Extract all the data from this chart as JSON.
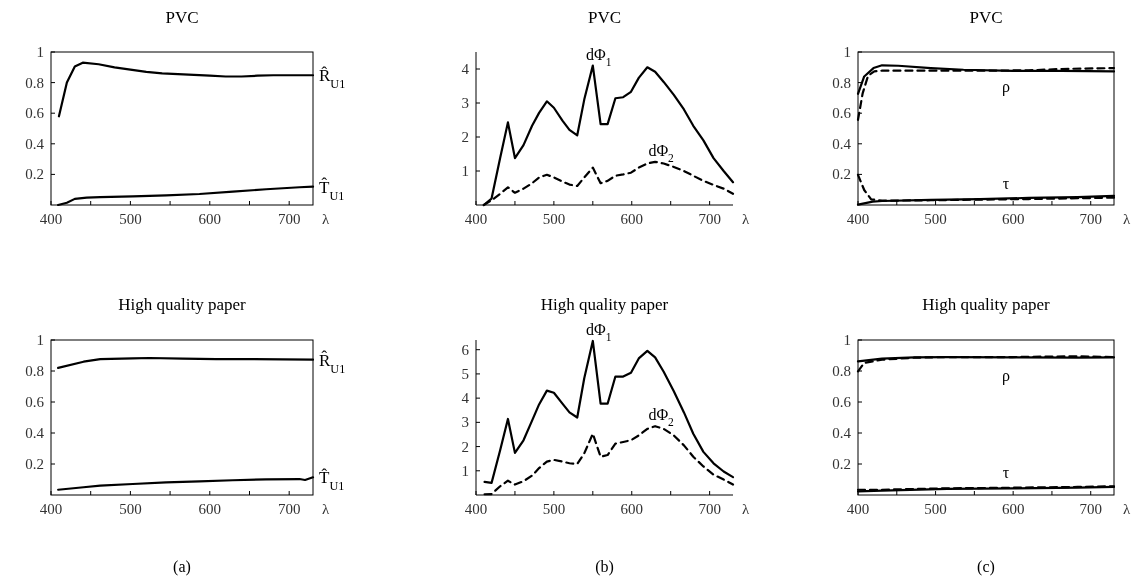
{
  "chart_data": [
    {
      "type": "line",
      "title": "PVC",
      "xlabel": "λ",
      "xlim": [
        400,
        730
      ],
      "ylim": [
        0,
        1
      ],
      "xticks": [
        400,
        {
          "value": 450,
          "label": null
        },
        500,
        {
          "value": 550,
          "label": null
        },
        600,
        {
          "value": 650,
          "label": null
        },
        700
      ],
      "yticks": [
        0.2,
        0.4,
        0.6,
        0.8,
        1
      ],
      "series": [
        {
          "name": "R̂$_{U1}$",
          "color": "#000000",
          "x": [
            410,
            420,
            430,
            440,
            460,
            480,
            500,
            520,
            540,
            560,
            580,
            600,
            620,
            640,
            660,
            680,
            700,
            730
          ],
          "values": [
            0.58,
            0.8,
            0.905,
            0.93,
            0.92,
            0.9,
            0.885,
            0.87,
            0.86,
            0.855,
            0.85,
            0.845,
            0.84,
            0.84,
            0.845,
            0.848,
            0.848,
            0.848
          ]
        },
        {
          "name": "T̂$_{U1}$",
          "color": "#000000",
          "x": [
            409,
            420,
            430,
            445,
            462,
            503,
            545,
            587,
            629,
            671,
            713,
            730
          ],
          "values": [
            0,
            0.015,
            0.04,
            0.048,
            0.052,
            0.057,
            0.063,
            0.072,
            0.087,
            0.103,
            0.116,
            0.12
          ]
        }
      ]
    },
    {
      "type": "line",
      "title": "PVC",
      "xlabel": "λ",
      "xlim": [
        400,
        730
      ],
      "ylim": [
        0,
        4.5
      ],
      "xticks": [
        400,
        {
          "value": 450,
          "label": null
        },
        500,
        {
          "value": 550,
          "label": null
        },
        600,
        {
          "value": 650,
          "label": null
        },
        700
      ],
      "yticks": [
        1,
        2,
        3,
        4
      ],
      "series": [
        {
          "name": "dΦ$_{1}$",
          "color": "#000000",
          "line_style": "solid",
          "x": [
            410,
            420,
            431,
            441,
            450,
            461,
            472,
            481,
            491,
            500,
            511,
            520,
            530,
            539,
            550,
            560,
            569,
            579,
            589,
            599,
            609,
            620,
            630,
            641,
            654,
            667,
            679,
            692,
            705,
            718,
            730
          ],
          "values": [
            0,
            0.19,
            1.38,
            2.43,
            1.38,
            1.76,
            2.33,
            2.71,
            3.05,
            2.86,
            2.48,
            2.21,
            2.05,
            3.1,
            4.1,
            2.38,
            2.38,
            3.14,
            3.17,
            3.33,
            3.74,
            4.05,
            3.92,
            3.62,
            3.24,
            2.81,
            2.33,
            1.9,
            1.38,
            1.0,
            0.67
          ]
        },
        {
          "name": "dΦ$_{2}$",
          "color": "#000000",
          "line_style": "dashed",
          "x": [
            410,
            420,
            431,
            441,
            450,
            461,
            472,
            481,
            491,
            500,
            511,
            520,
            530,
            539,
            550,
            560,
            569,
            579,
            589,
            599,
            609,
            620,
            630,
            641,
            654,
            667,
            679,
            692,
            705,
            718,
            730
          ],
          "values": [
            0,
            0.14,
            0.33,
            0.52,
            0.36,
            0.48,
            0.64,
            0.81,
            0.89,
            0.81,
            0.69,
            0.6,
            0.56,
            0.81,
            1.1,
            0.64,
            0.71,
            0.86,
            0.9,
            0.95,
            1.1,
            1.22,
            1.27,
            1.22,
            1.12,
            1.0,
            0.86,
            0.71,
            0.59,
            0.48,
            0.33
          ]
        }
      ]
    },
    {
      "type": "line",
      "title": "PVC",
      "xlabel": "λ",
      "xlim": [
        400,
        730
      ],
      "ylim": [
        0,
        1
      ],
      "xticks": [
        400,
        {
          "value": 450,
          "label": null
        },
        500,
        {
          "value": 550,
          "label": null
        },
        600,
        {
          "value": 650,
          "label": null
        },
        700
      ],
      "yticks": [
        0.2,
        0.4,
        0.6,
        0.8,
        1
      ],
      "annotations": [
        "ρ",
        "τ"
      ],
      "series": [
        {
          "color": "#000000",
          "line_style": "solid",
          "x": [
            400,
            408,
            420,
            431,
            452,
            494,
            536,
            599,
            662,
            730
          ],
          "values": [
            0.727,
            0.84,
            0.895,
            0.913,
            0.91,
            0.895,
            0.884,
            0.876,
            0.876,
            0.873
          ]
        },
        {
          "color": "#000000",
          "line_style": "dashed",
          "x": [
            400,
            406,
            413,
            421,
            431,
            494,
            557,
            620,
            662,
            730
          ],
          "values": [
            0.557,
            0.73,
            0.845,
            0.873,
            0.878,
            0.878,
            0.878,
            0.88,
            0.889,
            0.895
          ]
        },
        {
          "color": "#000000",
          "line_style": "solid",
          "x": [
            400,
            419,
            431,
            494,
            557,
            620,
            683,
            730
          ],
          "values": [
            0.002,
            0.022,
            0.026,
            0.033,
            0.039,
            0.046,
            0.052,
            0.059
          ]
        },
        {
          "color": "#000000",
          "line_style": "dashed",
          "x": [
            400,
            408,
            417,
            431,
            494,
            557,
            620,
            683,
            730
          ],
          "values": [
            0.197,
            0.098,
            0.037,
            0.028,
            0.031,
            0.035,
            0.039,
            0.044,
            0.048
          ]
        }
      ]
    },
    {
      "type": "line",
      "title": "High quality paper",
      "xlabel": "λ",
      "xlim": [
        400,
        730
      ],
      "ylim": [
        0,
        1
      ],
      "xticks": [
        400,
        {
          "value": 450,
          "label": null
        },
        500,
        {
          "value": 550,
          "label": null
        },
        600,
        {
          "value": 650,
          "label": null
        },
        700
      ],
      "yticks": [
        0.2,
        0.4,
        0.6,
        0.8,
        1
      ],
      "annotations": [
        "(a)"
      ],
      "series": [
        {
          "name": "R̂$_{U1}$",
          "color": "#000000",
          "x": [
            409,
            441,
            462,
            503,
            524,
            566,
            608,
            650,
            692,
            730
          ],
          "values": [
            0.82,
            0.86,
            0.877,
            0.882,
            0.884,
            0.88,
            0.877,
            0.877,
            0.875,
            0.873
          ]
        },
        {
          "name": "T̂$_{U1}$",
          "color": "#000000",
          "x": [
            409,
            441,
            462,
            503,
            545,
            587,
            629,
            671,
            713,
            720,
            730
          ],
          "values": [
            0.034,
            0.05,
            0.06,
            0.071,
            0.082,
            0.088,
            0.095,
            0.101,
            0.103,
            0.097,
            0.114
          ]
        }
      ]
    },
    {
      "type": "line",
      "title": "High quality paper",
      "xlabel": "λ",
      "xlim": [
        400,
        730
      ],
      "ylim": [
        0,
        6.4
      ],
      "xticks": [
        400,
        {
          "value": 450,
          "label": null
        },
        500,
        {
          "value": 550,
          "label": null
        },
        600,
        {
          "value": 650,
          "label": null
        },
        700
      ],
      "yticks": [
        1,
        2,
        3,
        4,
        5,
        6
      ],
      "annotations": [
        "(b)"
      ],
      "series": [
        {
          "name": "dΦ$_{1}$",
          "color": "#000000",
          "line_style": "solid",
          "x": [
            411,
            420,
            431,
            441,
            450,
            461,
            472,
            481,
            491,
            500,
            511,
            520,
            530,
            539,
            550,
            560,
            569,
            579,
            589,
            599,
            609,
            620,
            630,
            641,
            654,
            667,
            679,
            692,
            705,
            718,
            730
          ],
          "values": [
            0.54,
            0.5,
            1.85,
            3.14,
            1.74,
            2.26,
            3.07,
            3.74,
            4.31,
            4.22,
            3.77,
            3.41,
            3.2,
            4.82,
            6.36,
            3.77,
            3.77,
            4.89,
            4.89,
            5.05,
            5.64,
            5.95,
            5.68,
            5.09,
            4.28,
            3.41,
            2.53,
            1.78,
            1.31,
            0.97,
            0.74
          ]
        },
        {
          "name": "dΦ$_{2}$",
          "color": "#000000",
          "line_style": "dashed",
          "x": [
            411,
            420,
            431,
            441,
            450,
            461,
            472,
            481,
            491,
            500,
            511,
            520,
            530,
            539,
            550,
            560,
            569,
            579,
            589,
            599,
            609,
            620,
            630,
            641,
            654,
            667,
            679,
            692,
            705,
            718,
            730
          ],
          "values": [
            0.03,
            0.04,
            0.36,
            0.59,
            0.43,
            0.57,
            0.8,
            1.11,
            1.38,
            1.45,
            1.38,
            1.31,
            1.28,
            1.72,
            2.53,
            1.58,
            1.65,
            2.12,
            2.19,
            2.26,
            2.46,
            2.73,
            2.84,
            2.73,
            2.46,
            2.05,
            1.58,
            1.18,
            0.84,
            0.64,
            0.43
          ]
        }
      ]
    },
    {
      "type": "line",
      "title": "High quality paper",
      "xlabel": "λ",
      "xlim": [
        400,
        730
      ],
      "ylim": [
        0,
        1
      ],
      "xticks": [
        400,
        {
          "value": 450,
          "label": null
        },
        500,
        {
          "value": 550,
          "label": null
        },
        600,
        {
          "value": 650,
          "label": null
        },
        700
      ],
      "yticks": [
        0.2,
        0.4,
        0.6,
        0.8,
        1
      ],
      "annotations": [
        "(c)",
        "ρ",
        "τ"
      ],
      "series": [
        {
          "color": "#000000",
          "line_style": "solid",
          "x": [
            400,
            431,
            473,
            515,
            599,
            683,
            730
          ],
          "values": [
            0.862,
            0.88,
            0.888,
            0.89,
            0.888,
            0.886,
            0.888
          ]
        },
        {
          "color": "#000000",
          "line_style": "dashed",
          "x": [
            400,
            408,
            431,
            473,
            515,
            599,
            683,
            730
          ],
          "values": [
            0.798,
            0.852,
            0.873,
            0.886,
            0.89,
            0.89,
            0.895,
            0.89
          ]
        },
        {
          "color": "#000000",
          "line_style": "solid",
          "x": [
            400,
            431,
            515,
            599,
            683,
            730
          ],
          "values": [
            0.024,
            0.028,
            0.039,
            0.043,
            0.047,
            0.052
          ]
        },
        {
          "color": "#000000",
          "line_style": "dashed",
          "x": [
            400,
            431,
            515,
            599,
            683,
            730
          ],
          "values": [
            0.034,
            0.034,
            0.043,
            0.047,
            0.052,
            0.056
          ]
        }
      ]
    }
  ]
}
